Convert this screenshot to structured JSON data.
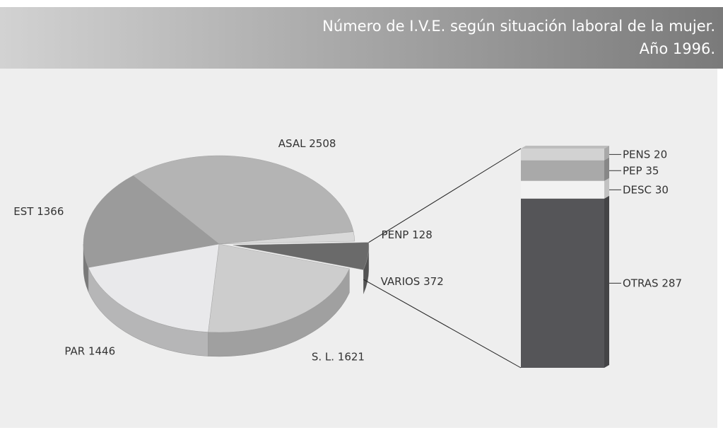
{
  "chart_data": [
    {
      "type": "pie",
      "title": "Número de I.V.E. según situación laboral de la mujer.",
      "subtitle": "Año 1996.",
      "categories": [
        "ASAL",
        "PENP",
        "VARIOS",
        "S. L.",
        "PAR",
        "EST"
      ],
      "values": [
        2508,
        128,
        372,
        1621,
        1446,
        1366
      ],
      "colors": [
        "#b4b4b4",
        "#d9d9d9",
        "#6a6a6a",
        "#cdcdcd",
        "#e9e9eb",
        "#9b9b9b"
      ],
      "exploded": "VARIOS"
    },
    {
      "type": "stacked-bar",
      "categories": [
        "PENS",
        "PEP",
        "DESC",
        "OTRAS"
      ],
      "values": [
        20,
        35,
        30,
        287
      ],
      "colors": [
        "#d2d2d2",
        "#a9a9a9",
        "#f2f2f2",
        "#555558"
      ]
    }
  ]
}
